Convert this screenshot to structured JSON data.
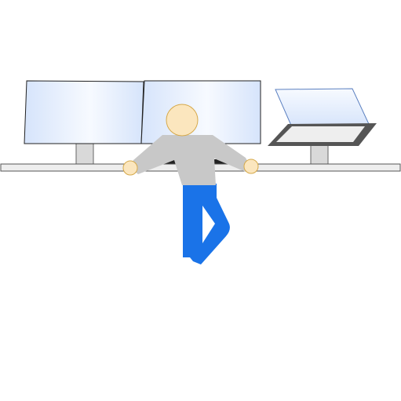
{
  "scene": {
    "background": "#ffffff",
    "colors": {
      "desk_fill": "#eeeeee",
      "desk_stroke": "#555555",
      "screen_glow": "#d6e4fb",
      "screen_fill": "#f7faff",
      "screen_stroke": "#222222",
      "laptop_screen_stroke": "#5a7fc0",
      "laptop_base": "#555555",
      "laptop_keys": "#eeeeee",
      "stand_fill": "#d9d9d9",
      "stand_stroke": "#666666",
      "skin": "#fbe6be",
      "skin_stroke": "#d6a94a",
      "shirt": "#c8c8c8",
      "pants": "#1a73e8",
      "keyboard": "#222222"
    },
    "icons": [
      "dual-monitor-icon",
      "laptop-on-stand-icon",
      "standing-person-icon"
    ]
  }
}
